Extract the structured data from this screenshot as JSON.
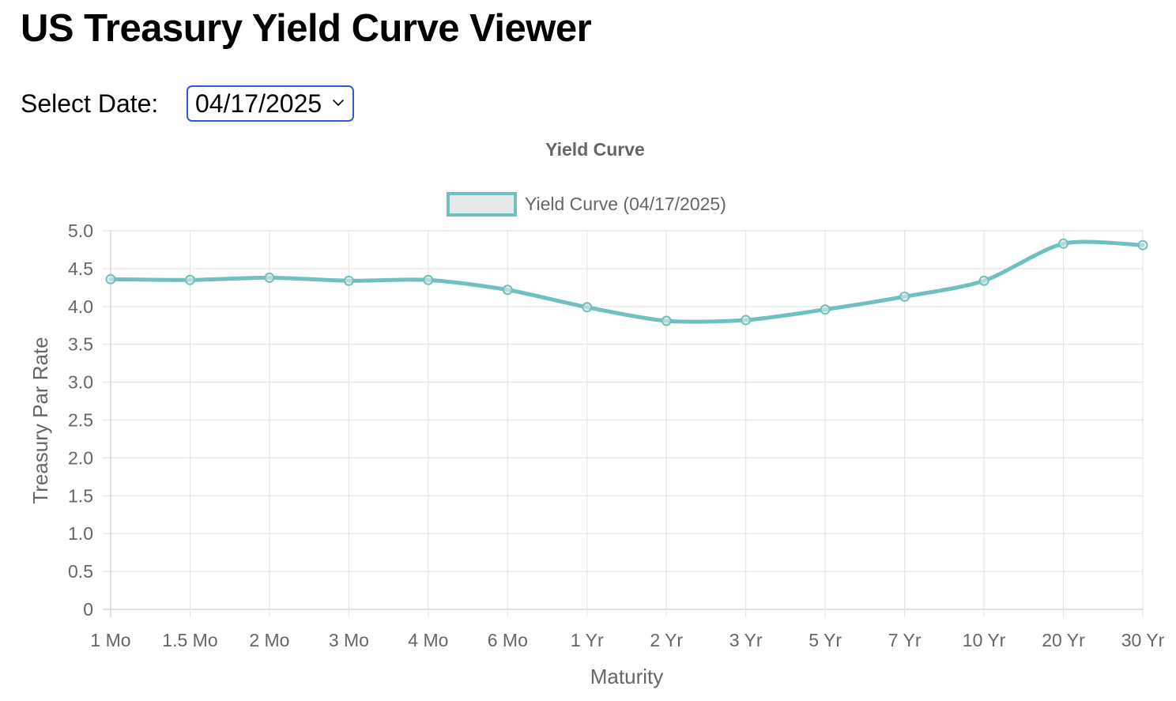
{
  "page": {
    "title": "US Treasury Yield Curve Viewer"
  },
  "date_selector": {
    "label": "Select Date:",
    "selected": "04/17/2025",
    "icon": "chevron-down-icon"
  },
  "colors": {
    "series_line": "#70c0c0",
    "series_fill": "#e6e8ea",
    "grid": "#e5e5e5",
    "axis_text": "#666666",
    "select_border": "#2360d8"
  },
  "chart_data": {
    "type": "line",
    "title": "Yield Curve",
    "xlabel": "Maturity",
    "ylabel": "Treasury Par Rate",
    "ylim": [
      0,
      5.0
    ],
    "yticks": [
      "0",
      "0.5",
      "1.0",
      "1.5",
      "2.0",
      "2.5",
      "3.0",
      "3.5",
      "4.0",
      "4.5",
      "5.0"
    ],
    "grid": true,
    "legend_position": "top-center",
    "categories": [
      "1 Mo",
      "1.5 Mo",
      "2 Mo",
      "3 Mo",
      "4 Mo",
      "6 Mo",
      "1 Yr",
      "2 Yr",
      "3 Yr",
      "5 Yr",
      "7 Yr",
      "10 Yr",
      "20 Yr",
      "30 Yr"
    ],
    "series": [
      {
        "name": "Yield Curve (04/17/2025)",
        "values": [
          4.36,
          4.35,
          4.38,
          4.34,
          4.35,
          4.22,
          3.99,
          3.81,
          3.82,
          3.96,
          4.13,
          4.34,
          4.83,
          4.81
        ]
      }
    ]
  }
}
